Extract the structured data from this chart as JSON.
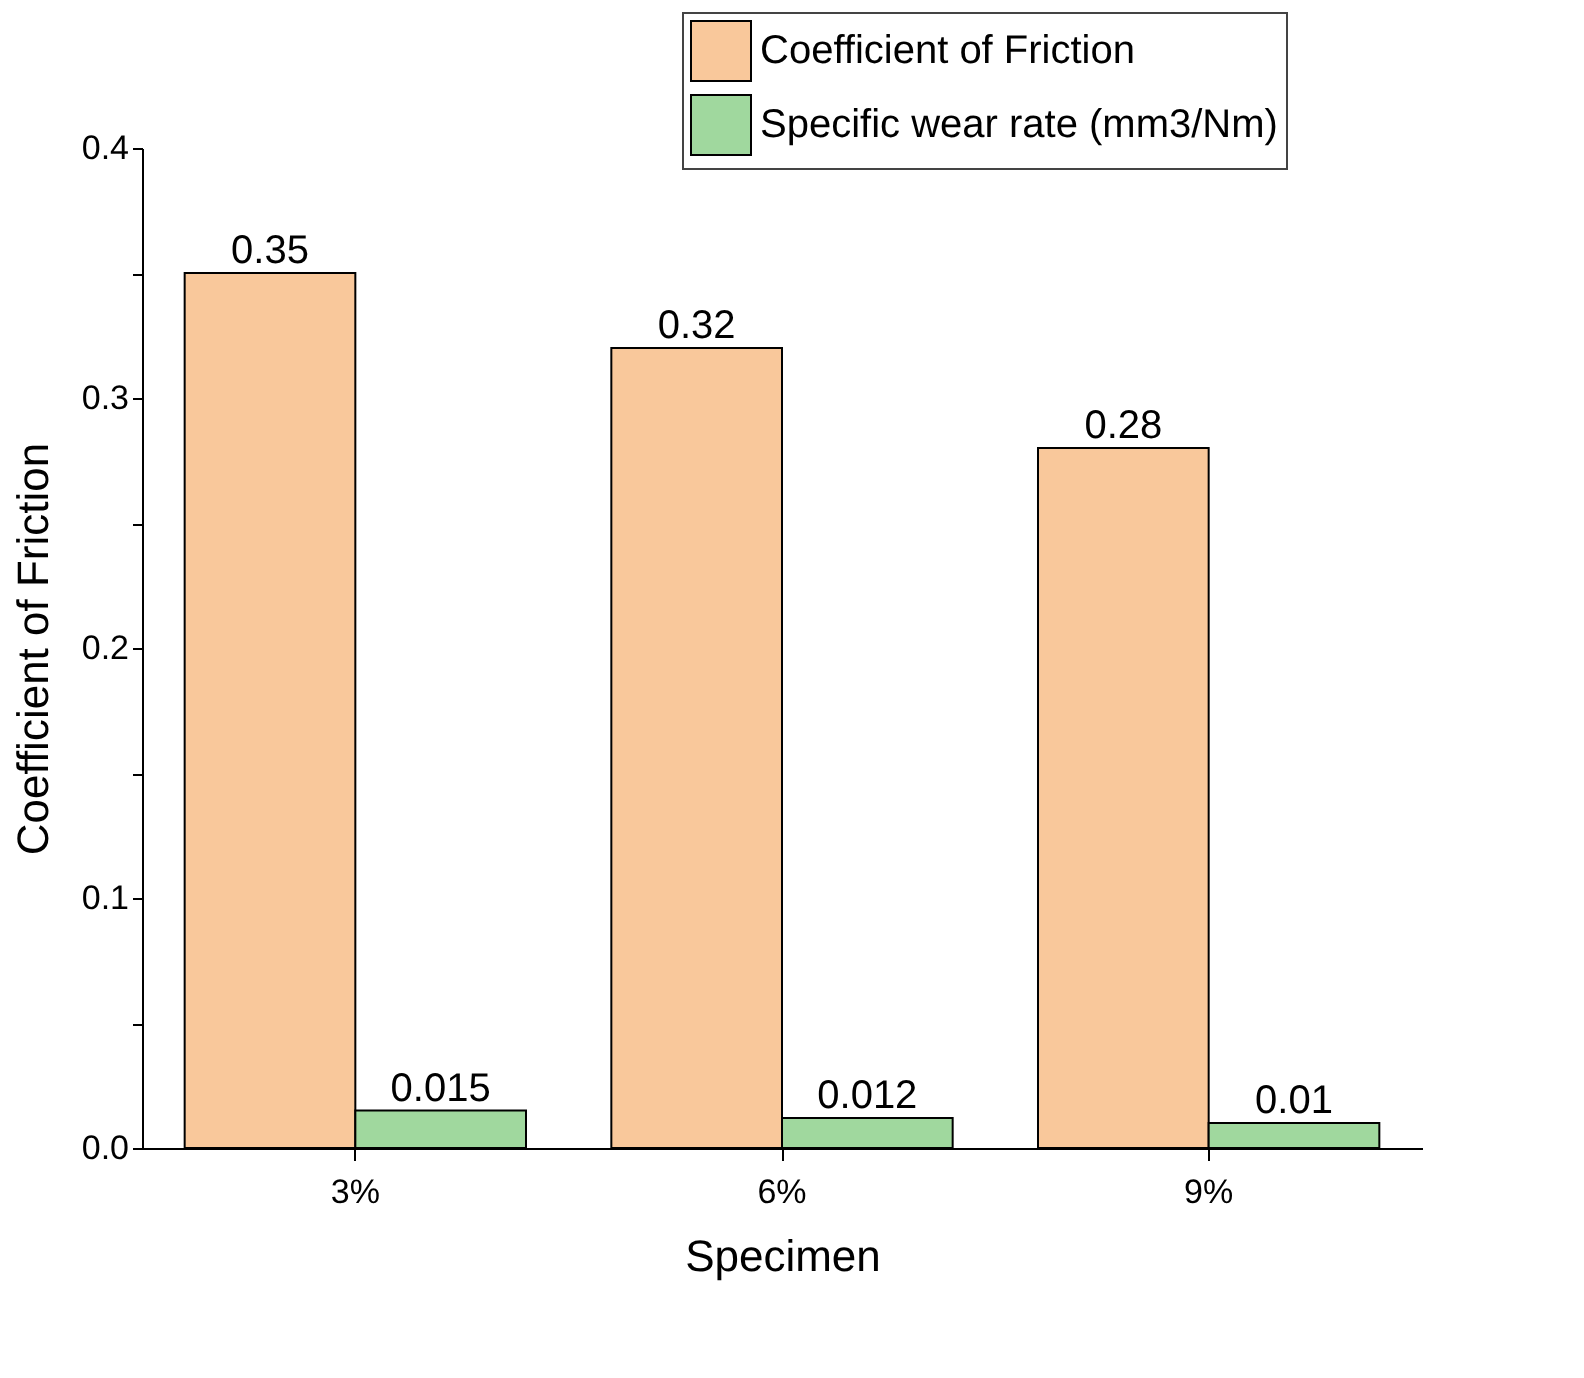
{
  "chart_data": {
    "type": "bar",
    "xlabel": "Specimen",
    "ylabel": "Coefficient of Friction",
    "categories": [
      "3%",
      "6%",
      "9%"
    ],
    "series": [
      {
        "name": "Coefficient of Friction",
        "color": "#f9c89b",
        "values": [
          0.35,
          0.32,
          0.28
        ]
      },
      {
        "name": "Specific wear rate (mm3/Nm)",
        "color": "#a0d89e",
        "values": [
          0.015,
          0.012,
          0.01
        ]
      }
    ],
    "ylim": [
      0,
      0.4
    ],
    "yticks": [
      {
        "value": 0,
        "label": "0.0"
      },
      {
        "value": 0.05,
        "label": null
      },
      0.1,
      {
        "value": 0.15,
        "label": null
      },
      0.2,
      {
        "value": 0.25,
        "label": null
      },
      0.3,
      {
        "value": 0.35,
        "label": null
      },
      0.4
    ],
    "data_labels": true,
    "legend": "top right",
    "grid": false
  }
}
